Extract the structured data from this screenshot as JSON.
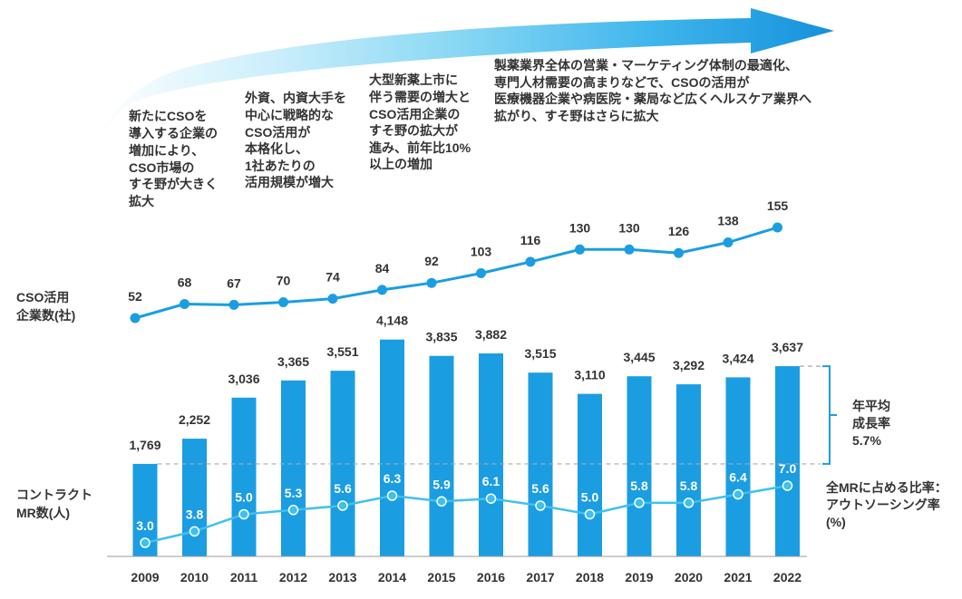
{
  "annotations": [
    {
      "lines": [
        "新たにCSOを",
        "導入する企業の",
        "増加により、",
        "CSO市場の",
        "すそ野が大きく",
        "拡大"
      ]
    },
    {
      "lines": [
        "外資、内資大手を",
        "中心に戦略的な",
        "CSO活用が",
        "本格化し、",
        "1社あたりの",
        "活用規模が増大"
      ]
    },
    {
      "lines": [
        "大型新薬上市に",
        "伴う需要の増大と",
        "CSO活用企業の",
        "すそ野の拡大が",
        "進み、前年比10%",
        "以上の増加"
      ]
    },
    {
      "lines": [
        "製薬業界全体の営業・マーケティング体制の最適化、",
        "専門人材需要の高まりなどで、CSOの活用が",
        "医療機器企業や病医院・薬局など広くヘルスケア業界へ",
        "拡がり、すそ野はさらに拡大"
      ]
    }
  ],
  "cagr": {
    "lines": [
      "年平均",
      "成長率",
      "5.7%"
    ]
  },
  "colors": {
    "bar": "#1b9de2",
    "cso_line": "#1b9de2",
    "ratio_line": "#3fc0f0",
    "ratio_label": "#ffffff",
    "text": "#333333",
    "dash": "#aaaaaa",
    "baseline": "#999999",
    "arrow_gradient": [
      "#ffffff",
      "#c9eefb",
      "#86d6f4",
      "#40b6ec",
      "#1590dc"
    ]
  },
  "chart_data": {
    "type": "bar",
    "grid": false,
    "categories": [
      "2009",
      "2010",
      "2011",
      "2012",
      "2013",
      "2014",
      "2015",
      "2016",
      "2017",
      "2018",
      "2019",
      "2020",
      "2021",
      "2022"
    ],
    "series": [
      {
        "label_lines": [
          "コントラクト",
          "MR数(人)"
        ],
        "mark": "bar",
        "values": [
          1769,
          2252,
          3036,
          3365,
          3551,
          4148,
          3835,
          3882,
          3515,
          3110,
          3445,
          3292,
          3424,
          3637
        ],
        "labels": [
          "1,769",
          "2,252",
          "3,036",
          "3,365",
          "3,551",
          "4,148",
          "3,835",
          "3,882",
          "3,515",
          "3,110",
          "3,445",
          "3,292",
          "3,424",
          "3,637"
        ]
      },
      {
        "label_lines": [
          "CSO活用",
          "企業数(社)"
        ],
        "mark": "line",
        "values": [
          52,
          68,
          67,
          70,
          74,
          84,
          92,
          103,
          116,
          130,
          130,
          126,
          138,
          155
        ]
      },
      {
        "label_lines": [
          "全MRに占める比率：",
          "アウトソーシング率",
          "(%)"
        ],
        "mark": "line",
        "values": [
          3.0,
          3.8,
          5.0,
          5.3,
          5.6,
          6.3,
          5.9,
          6.1,
          5.6,
          5.0,
          5.8,
          5.8,
          6.4,
          7.0
        ],
        "labels": [
          "3.0",
          "3.8",
          "5.0",
          "5.3",
          "5.6",
          "6.3",
          "5.9",
          "6.1",
          "5.6",
          "5.0",
          "5.8",
          "5.8",
          "6.4",
          "7.0"
        ]
      }
    ]
  }
}
